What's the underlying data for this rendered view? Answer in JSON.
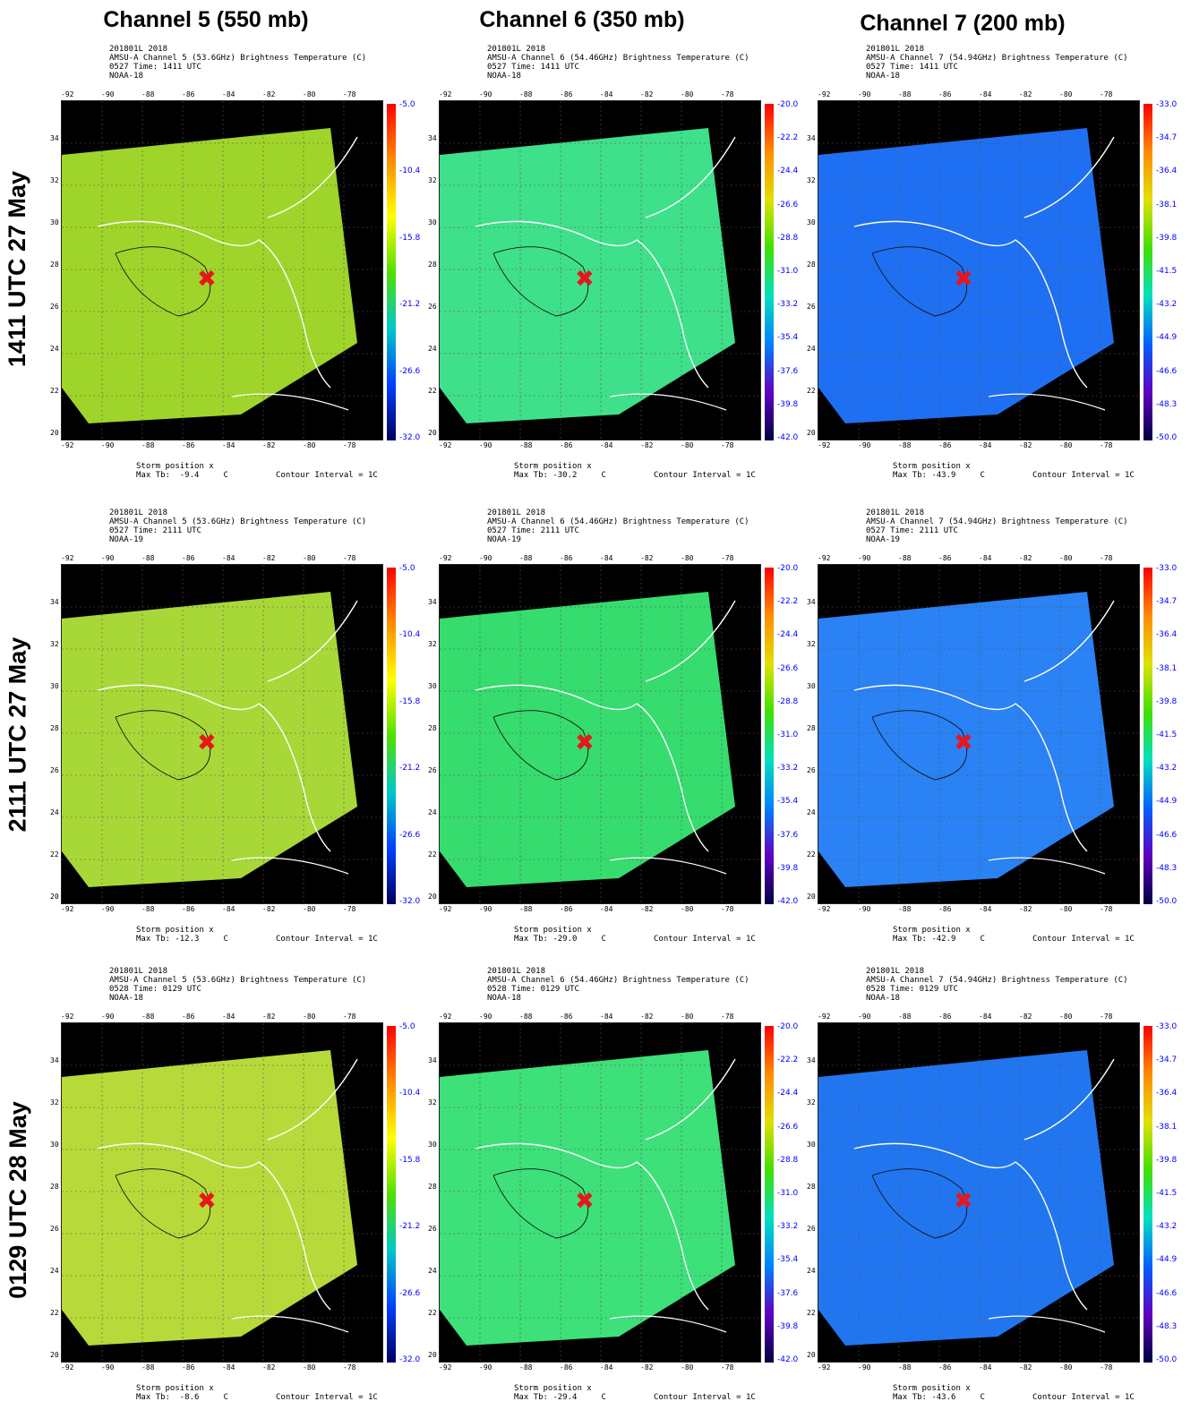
{
  "columns": [
    "Channel 5 (550 mb)",
    "Channel 6 (350 mb)",
    "Channel 7 (200 mb)"
  ],
  "rows": [
    "1411 UTC 27 May",
    "2111 UTC 27 May",
    "0129 UTC 28 May"
  ],
  "footer": {
    "storm_position": "Storm position x",
    "contour_interval": "Contour Interval = 1C",
    "unit": "C"
  },
  "x_ticks": [
    "-92",
    "-90",
    "-88",
    "-86",
    "-84",
    "-82",
    "-80",
    "-78"
  ],
  "y_ticks": [
    "34",
    "32",
    "30",
    "28",
    "26",
    "24",
    "22",
    "20"
  ],
  "colorbars": {
    "ch5": [
      "-5.0",
      "-10.4",
      "-15.8",
      "-21.2",
      "-26.6",
      "-32.0"
    ],
    "ch6": [
      "-20.0",
      "-22.2",
      "-24.4",
      "-26.6",
      "-28.8",
      "-31.0",
      "-33.2",
      "-35.4",
      "-37.6",
      "-39.8",
      "-42.0"
    ],
    "ch7": [
      "-33.0",
      "-34.7",
      "-36.4",
      "-38.1",
      "-39.8",
      "-41.5",
      "-43.2",
      "-44.9",
      "-46.6",
      "-48.3",
      "-50.0"
    ]
  },
  "panels": [
    {
      "hdr": "201801L 2018\nAMSU-A Channel 5 (53.6GHz) Brightness Temperature (C)\n0527 Time: 1411 UTC\nNOAA-18",
      "max_tb": "Max Tb:  -9.4",
      "fill": "#9fd52a",
      "cbar": "ch5"
    },
    {
      "hdr": "201801L 2018\nAMSU-A Channel 6 (54.46GHz) Brightness Temperature (C)\n0527 Time: 1411 UTC\nNOAA-18",
      "max_tb": "Max Tb: -30.2",
      "fill": "#3fe08a",
      "cbar": "ch6"
    },
    {
      "hdr": "201801L 2018\nAMSU-A Channel 7 (54.94GHz) Brightness Temperature (C)\n0527 Time: 1411 UTC\nNOAA-18",
      "max_tb": "Max Tb: -43.9",
      "fill": "#1f6ff2",
      "cbar": "ch7"
    },
    {
      "hdr": "201801L 2018\nAMSU-A Channel 5 (53.6GHz) Brightness Temperature (C)\n0527 Time: 2111 UTC\nNOAA-19",
      "max_tb": "Max Tb: -12.3",
      "fill": "#a8d838",
      "cbar": "ch5"
    },
    {
      "hdr": "201801L 2018\nAMSU-A Channel 6 (54.46GHz) Brightness Temperature (C)\n0527 Time: 2111 UTC\nNOAA-19",
      "max_tb": "Max Tb: -29.0",
      "fill": "#36dc6e",
      "cbar": "ch6"
    },
    {
      "hdr": "201801L 2018\nAMSU-A Channel 7 (54.94GHz) Brightness Temperature (C)\n0527 Time: 2111 UTC\nNOAA-19",
      "max_tb": "Max Tb: -42.9",
      "fill": "#2a82f4",
      "cbar": "ch7"
    },
    {
      "hdr": "201801L 2018\nAMSU-A Channel 5 (53.6GHz) Brightness Temperature (C)\n0528 Time: 0129 UTC\nNOAA-18",
      "max_tb": "Max Tb:  -8.6",
      "fill": "#b7da3a",
      "cbar": "ch5"
    },
    {
      "hdr": "201801L 2018\nAMSU-A Channel 6 (54.46GHz) Brightness Temperature (C)\n0528 Time: 0129 UTC\nNOAA-18",
      "max_tb": "Max Tb: -29.4",
      "fill": "#3ee07a",
      "cbar": "ch6"
    },
    {
      "hdr": "201801L 2018\nAMSU-A Channel 7 (54.94GHz) Brightness Temperature (C)\n0528 Time: 0129 UTC\nNOAA-18",
      "max_tb": "Max Tb: -43.6",
      "fill": "#2176f0",
      "cbar": "ch7"
    }
  ],
  "colors": {
    "ch5_gradient": [
      "#ff0000",
      "#ff8c00",
      "#ffff00",
      "#50e000",
      "#00c8c8",
      "#0040ff",
      "#000060"
    ],
    "ch6_gradient": [
      "#ff0000",
      "#ff8c00",
      "#e0e000",
      "#40e000",
      "#00e0c0",
      "#0080ff",
      "#6000c0",
      "#000040"
    ],
    "ch7_gradient": [
      "#ff0000",
      "#ff8c00",
      "#e0e000",
      "#40e000",
      "#00e0c0",
      "#0060ff",
      "#6000c0",
      "#000040"
    ],
    "storm_marker": "#e8161b"
  }
}
